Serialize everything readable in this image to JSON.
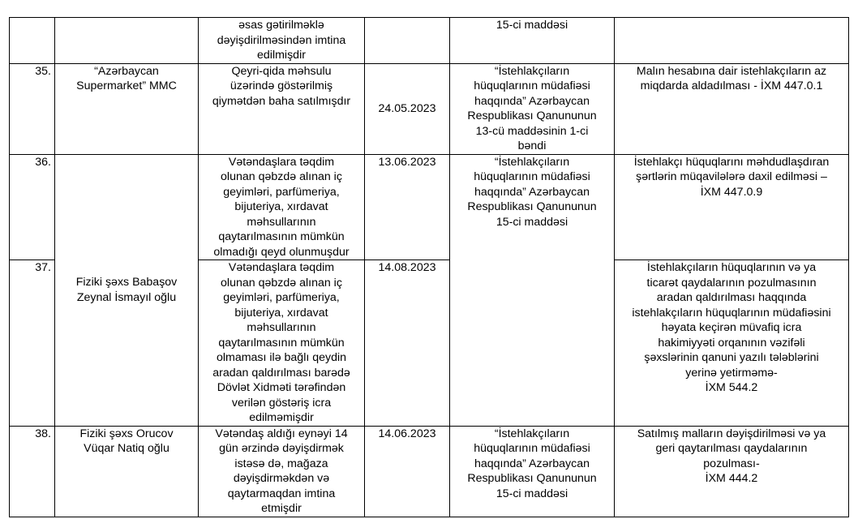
{
  "table": {
    "rows": [
      {
        "number": "",
        "entity": "",
        "violation": "əsas gətirilməklə\ndəyişdirilməsindən imtina\nedilmişdir",
        "date": "",
        "law": "15-ci maddəsi",
        "penalty": ""
      },
      {
        "number": "35.",
        "entity": "“Azərbaycan\nSupermarket” MMC",
        "violation": "Qeyri-qida məhsulu\nüzərində göstərilmiş\nqiymətdən baha satılmışdır",
        "date": "24.05.2023",
        "law": "“İstehlakçıların\nhüquqlarının müdafiəsi\nhaqqında” Azərbaycan\nRespublikası Qanununun\n13-cü maddəsinin 1-ci\nbəndi",
        "penalty": "Malın hesabına dair istehlakçıların az\nmiqdarda aldadılması - İXM 447.0.1"
      },
      {
        "number": "36.",
        "entity": "Fiziki şəxs Babaşov\nZeynal İsmayıl oğlu",
        "violation": "Vətəndaşlara təqdim\nolunan qəbzdə alınan iç\ngeyimləri, parfümeriya,\nbijuteriya, xırdavat\nməhsullarının\nqaytarılmasının mümkün\nolmadığı qeyd olunmuşdur",
        "date": "13.06.2023",
        "law": "“İstehlakçıların\nhüquqlarının müdafiəsi\nhaqqında” Azərbaycan\nRespublikası Qanununun\n15-ci maddəsi",
        "penalty": "İstehlakçı hüquqlarını məhdudlaşdıran\nşərtlərin müqavilələrə daxil edilməsi –\nİXM 447.0.9"
      },
      {
        "number": "37.",
        "violation": "Vətəndaşlara təqdim\nolunan qəbzdə alınan iç\ngeyimləri, parfümeriya,\nbijuteriya, xırdavat\nməhsullarının\nqaytarılmasının mümkün\nolmaması ilə bağlı qeydin\naradan qaldırılması barədə\nDövlət Xidməti tərəfindən\nverilən göstəriş icra\nedilməmişdir",
        "date": "14.08.2023",
        "penalty": "İstehlakçıların hüquqlarının və ya\nticarət qaydalarının pozulmasının\naradan qaldırılması haqqında\nistehlakçıların hüquqlarının müdafiəsini\nhəyata keçirən müvafiq icra\nhakimiyyəti orqanının vəzifəli\nşəxslərinin qanuni yazılı tələblərini\nyerinə yetirməmə-\nİXM 544.2"
      },
      {
        "number": "38.",
        "entity": "Fiziki şəxs Orucov\nVüqar Natiq oğlu",
        "violation": "Vətəndaş aldığı eynəyi 14\ngün ərzində dəyişdirmək\nistəsə də, mağaza\ndəyişdirməkdən və\nqaytarmaqdan imtina\netmişdir",
        "date": "14.06.2023",
        "law": "“İstehlakçıların\nhüquqlarının müdafiəsi\nhaqqında” Azərbaycan\nRespublikası Qanununun\n15-ci maddəsi",
        "penalty": "Satılmış malların dəyişdirilməsi və ya\ngeri qaytarılması qaydalarının\npozulması-\nİXM 444.2"
      }
    ]
  }
}
